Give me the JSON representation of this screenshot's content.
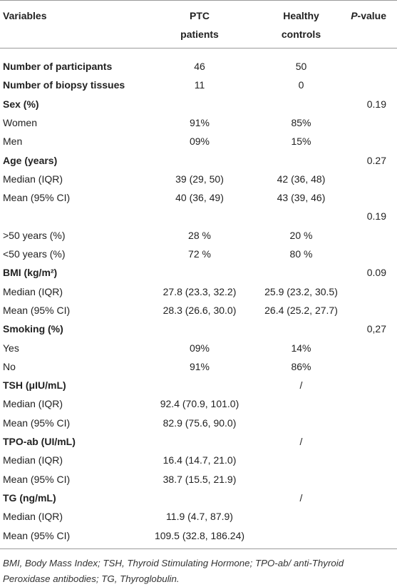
{
  "table": {
    "header": {
      "variables": "Variables",
      "ptc": [
        "PTC",
        "patients"
      ],
      "healthy": [
        "Healthy",
        "controls"
      ],
      "p_value": [
        "P",
        "-value"
      ]
    },
    "rows": [
      {
        "cells": [
          "Number of participants",
          "46",
          "50",
          null
        ],
        "bold": true
      },
      {
        "cells": [
          "Number of biopsy tissues",
          "11",
          "0",
          null
        ],
        "bold": true
      },
      {
        "cells": [
          "Sex (%)",
          null,
          null,
          "0.19"
        ],
        "bold": true
      },
      {
        "cells": [
          "Women",
          "91%",
          "85%",
          null
        ],
        "bold": false
      },
      {
        "cells": [
          "Men",
          "09%",
          "15%",
          null
        ],
        "bold": false
      },
      {
        "cells": [
          "Age (years)",
          null,
          null,
          "0.27"
        ],
        "bold": true
      },
      {
        "cells": [
          "Median (IQR)",
          "39 (29, 50)",
          "42 (36, 48)",
          null
        ],
        "bold": false
      },
      {
        "cells": [
          "Mean (95% CI)",
          "40 (36, 49)",
          "43 (39, 46)",
          null
        ],
        "bold": false
      },
      {
        "cells": [
          null,
          null,
          null,
          "0.19"
        ],
        "bold": false
      },
      {
        "cells": [
          ">50 years (%)",
          "28 %",
          "20 %",
          null
        ],
        "bold": false
      },
      {
        "cells": [
          "<50 years (%)",
          "72 %",
          "80 %",
          null
        ],
        "bold": false
      },
      {
        "cells": [
          "BMI (kg/m²)",
          null,
          null,
          "0.09"
        ],
        "bold": true
      },
      {
        "cells": [
          "Median (IQR)",
          "27.8 (23.3, 32.2)",
          "25.9 (23.2, 30.5)",
          null
        ],
        "bold": false
      },
      {
        "cells": [
          "Mean (95% CI)",
          "28.3 (26.6, 30.0)",
          "26.4 (25.2, 27.7)",
          null
        ],
        "bold": false
      },
      {
        "cells": [
          "Smoking (%)",
          null,
          null,
          "0,27"
        ],
        "bold": true
      },
      {
        "cells": [
          "Yes",
          "09%",
          "14%",
          null
        ],
        "bold": false
      },
      {
        "cells": [
          "No",
          "91%",
          "86%",
          null
        ],
        "bold": false
      },
      {
        "cells": [
          "TSH (μIU/mL)",
          null,
          "/",
          null
        ],
        "bold": true
      },
      {
        "cells": [
          "Median (IQR)",
          "92.4 (70.9, 101.0)",
          null,
          null
        ],
        "bold": false
      },
      {
        "cells": [
          "Mean (95% CI)",
          "82.9 (75.6, 90.0)",
          null,
          null
        ],
        "bold": false
      },
      {
        "cells": [
          "TPO-ab (UI/mL)",
          null,
          "/",
          null
        ],
        "bold": true
      },
      {
        "cells": [
          "Median (IQR)",
          "16.4 (14.7, 21.0)",
          null,
          null
        ],
        "bold": false
      },
      {
        "cells": [
          "Mean (95% CI)",
          "38.7 (15.5, 21.9)",
          null,
          null
        ],
        "bold": false
      },
      {
        "cells": [
          "TG (ng/mL)",
          null,
          "/",
          null
        ],
        "bold": true
      },
      {
        "cells": [
          "Median (IQR)",
          "11.9 (4.7, 87.9)",
          null,
          null
        ],
        "bold": false
      },
      {
        "cells": [
          "Mean (95% CI)",
          "109.5 (32.8, 186.24)",
          null,
          null
        ],
        "bold": false
      }
    ],
    "footnote": "BMI, Body Mass Index; TSH, Thyroid Stimulating Hormone; TPO-ab/ anti-Thyroid Peroxidase antibodies; TG, Thyroglobulin."
  }
}
